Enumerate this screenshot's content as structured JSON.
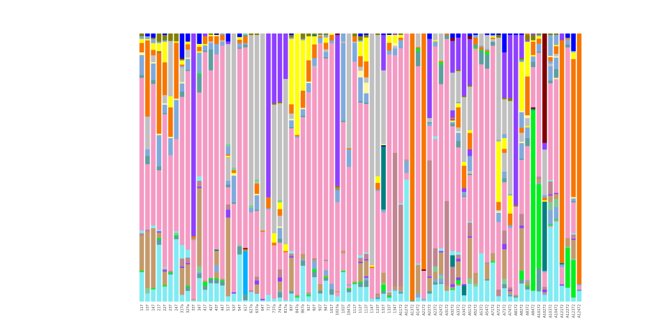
{
  "chart_data": {
    "type": "bar",
    "stacked": true,
    "normalized": true,
    "title": "",
    "xlabel": "",
    "ylabel": "",
    "ylim": [
      0,
      1
    ],
    "grid": false,
    "legend": "none",
    "stack_format": "bottom-to-top list of category:fraction",
    "category_colors": {
      "c": "#80EBF3",
      "t": "#C49A6C",
      "p": "#F49AC3",
      "g": "#C0C0C0",
      "l": "#80AADC",
      "o": "#F77600",
      "v": "#8F40FF",
      "y": "#FFFF00",
      "q": "#5F9EA0",
      "m": "#C08590",
      "b": "#0000FF",
      "k": "#008080",
      "G": "#00F020",
      "n": "#808000",
      "r": "#800000",
      "s": "#00B0FF",
      "e": "#80CC99",
      "w": "#FFF8A0"
    },
    "bars": [
      {
        "label": "117",
        "stack": "c:.11 G:.005 t:.13 m:.01 c:.01 p:.57 q:.01 l:.075 w:.01 o:.035 y:.015 l:.01 n:.01"
      },
      {
        "label": "137",
        "stack": "c:.03 e:.02 t:.205 m:.01 p:.24 q:.03 l:.025 g:.12 o:.28 y:.005 l:.01 b:.01"
      },
      {
        "label": "147",
        "stack": "c:.045 G:.005 t:.22 c:.01 p:.52 q:.015 l:.06 w:.005 g:.025 o:.02 y:.025 l:.015 n:.005 b:.015"
      },
      {
        "label": "217",
        "stack": "c:.21 q:.02 G:.005 t:.02 v:.005 c:.005 p:.22 q:.015 l:.115 w:.005 o:.3 n:.005 y:.03 l:.005 n:.03"
      },
      {
        "label": "227",
        "stack": "c:.055 G:.005 t:.05 v:.005 m:.005 c:.005 p:.56 q:.005 l:.03 w:.005 g:.03 o:.12 y:.075 l:.005 n:.02 b:.005"
      },
      {
        "label": "237",
        "stack": "c:.11 q:.005 G:.005 m:.005 p:.47 l:.07 w:.005 o:.12 y:.045 g:.225 n:.03"
      },
      {
        "label": "247",
        "stack": "c:.24 q:.01 G:.005 e:.01 c:.005 p:.355 l:.15 w:.005 o:.215 y:.005 n:.03"
      },
      {
        "label": "317a",
        "stack": "c:.025 t:.1 v:.005 m:.03 c:.05 p:.55 q:.02 l:.03 w:.005 g:.055 l:.005 o:.005 y:.015 q:.005 r:.005 b:.09"
      },
      {
        "label": "327a",
        "stack": "c:.04 q:.015 G:.005 t:.08 v:.005 m:.02 c:.03 p:.67 q:.005 l:.04 w:.005 g:.03 o:.02 y:.01 b:.03"
      },
      {
        "label": "337",
        "stack": "c:.005 t:.005 p:.22 l:.005 o:.01 v:.76"
      },
      {
        "label": "347",
        "stack": "c:.08 q:.015 l:.005 e:.02 t:.265 v:.005 m:.02 c:.015 p:.285 q:.06 G:.005 l:.07 y:.005 o:.015 y:.01 b:.035"
      },
      {
        "label": "417",
        "stack": "c:.045 q:.015 G:.015 t:.005 p:.87 q:.005 l:.02 y:.005 o:.03 v:.01"
      },
      {
        "label": "427",
        "stack": "c:.07 q:.015 G:.005 p:.79 q:.08 l:.025 g:.005 o:.02 y:.005 n:.005"
      },
      {
        "label": "437",
        "stack": "c:.07 q:.015 G:.005 t:.025 l:.025 t:.055 k:.005 p:.75 l:.04 o:.03 y:.005 b:.005"
      },
      {
        "label": "447",
        "stack": "c:.06 q:.015 G:.005 t:.005 p:.87 l:.015 g:.005 o:.02 l:.005"
      },
      {
        "label": "517",
        "stack": "c:.02 t:.3 v:.03 m:.02 p:.065 q:.01 l:.015 g:.09 y:.005 o:.005 l:.03 e:.01 g:.38 v:.01 b:.03"
      },
      {
        "label": "537",
        "stack": "c:.03 v:.005 p:.33 q:.005 l:.1 w:.005 y:.005 o:.01 e:.01 g:.5"
      },
      {
        "label": "547",
        "stack": "c:.175 q:.03 e:.005 p:.73 q:.005 l:.015 o:.013 y:.01 b:.013"
      },
      {
        "label": "617",
        "stack": "c:.005 q:.02 s:.16 o:.005 r:.005 p:.73 q:.01 l:.005 o:.025 q:.005 e:.005"
      },
      {
        "label": "627a",
        "stack": "c:.035 m:.005 p:.28 l:.015 e:.01 g:.61 n:.005"
      },
      {
        "label": "637a",
        "stack": "c:.03 m:.005 t:.03 v:.015 m:.015 p:.25 q:.005 l:.055 w:.005 o:.04 g:.005 e:.01 g:.55 n:.005"
      },
      {
        "label": "647",
        "stack": "c:.005 v:.005 p:.25 o:.005 g:.735"
      },
      {
        "label": "717",
        "stack": "c:.025 p:.315 l:.005 o:.04 v:.605"
      },
      {
        "label": "737a",
        "stack": "c:.01 p:.2 o:.01 y:.035 g:.48 n:.005 v:.26"
      },
      {
        "label": "747a",
        "stack": "c:.015 q:.02 l:.005 t:.035 v:.015 m:.03 p:.1 q:.015 l:.04 w:.005 g:.04 o:.025 y:.025 e:.01 g:.36 n:.005 v:.255"
      },
      {
        "label": "817a",
        "stack": "c:.005 p:.18 o:.005 y:.025 g:.62 v:.17"
      },
      {
        "label": "837",
        "stack": "c:.03 q:.01 t:.125 v:.005 m:.01 c:.01 p:.46 q:.005 l:.025 w:.005 g:.02 o:.035 y:.245 l:.005 n:.01 b:.005"
      },
      {
        "label": "847a",
        "stack": "c:.015 G:.005 t:.005 p:.59 l:.005 o:.005 y:.38"
      },
      {
        "label": "867a",
        "stack": "c:.135 q:.02 l:.005 t:.02 p:.515 q:.005 l:.025 w:.005 o:.065 y:.19 l:.005 n:.02"
      },
      {
        "label": "917",
        "stack": "c:.02 G:.005 l:.005 t:.005 p:.75 l:.035 w:.005 o:.08 y:.09 n:.01"
      },
      {
        "label": "927",
        "stack": "c:.09 q:.02 G:.01 l:.03 t:.005 m:.005 p:.705 g:.005 l:.03 o:.05 y:.03 k:.005 n:.005"
      },
      {
        "label": "937",
        "stack": "c:.03 q:.01 t:.025 p:.89 l:.02 o:.005 g:.005 n:.005"
      },
      {
        "label": "947",
        "stack": "c:.08 q:.01 G:.005 t:.005 l:.02 p:.035 m:.005 p:.77 q:.005 l:.02 g:.01 o:.025 y:.02 l:.01 n:.005"
      },
      {
        "label": "1017",
        "stack": "c:.025 q:.02 l:.02 p:.87 l:.01 o:.02 y:.005"
      },
      {
        "label": "1027a",
        "stack": "c:.02 p:.015 t:.005 p:.335 l:.045 q:.005 o:.005 n:.005 v:.57 r:.005"
      },
      {
        "label": "1037",
        "stack": "c:.11 G:.005 p:.065 t:.01 p:.48 q:.005 l:.29 g:.005 l:.03"
      },
      {
        "label": "1047a",
        "stack": "c:.035 q:.01 G:.005 p:.01 l:.005 p:.44 l:.065 o:.005 g:.43"
      },
      {
        "label": "1117",
        "stack": "c:.065 G:.005 t:.005 p:.82 l:.07 g:.005 o:.02 n:.01"
      },
      {
        "label": "1127",
        "stack": "c:.055 q:.015 G:.005 t:.07 v:.005 m:.015 c:.01 p:.575 q:.005 l:.09 w:.025 g:.015 o:.04 y:.055 l:.005 n:.015 b:.01"
      },
      {
        "label": "1137",
        "stack": "c:.055 q:.025 l:.01 v:.005 t:.06 v:.005 m:.02 c:.005 p:.56 q:.005 l:.035 w:.04 g:.02 o:.06 y:.09 n:.01 b:.005"
      },
      {
        "label": "1147",
        "stack": "c:.01 p:.115 o:.005 y:.005 g:.865"
      },
      {
        "label": "1237",
        "stack": "c:.01 s:.005 t:.01 m:.005 p:.385 l:.005 o:.025 y:.025 g:.53 n:.005"
      },
      {
        "label": "1327",
        "stack": "c:.03 q:.01 G:.025 e:.005 t:.04 p:.23 l:.01 k:.24 b:.005 y:.005 g:.28 v:.135 b:.005"
      },
      {
        "label": "1337",
        "stack": "c:.015 G:.005 q:.005 t:.01 c:.005 p:.905 l:.015 o:.03 y:.03 b:.005"
      },
      {
        "label": "1347",
        "stack": "c:.04 l:.005 t:.01 m:.495 p:.36 l:.025 g:.01 w:.01 y:.03 v:.005"
      },
      {
        "label": "A1172",
        "stack": "c:.03 q:.005 l:.005 t:.015 m:.305 c:.005 p:.575 l:.03 o:.01 y:.01 n:.005"
      },
      {
        "label": "A1272",
        "stack": "c:.455 p:.025 l:.045 t:.005 p:.47"
      },
      {
        "label": "A1372",
        "stack": "q:.005 o:.995"
      },
      {
        "label": "A1472",
        "stack": "c:.015 l:.015 t:.105 c:.005 p:.725 q:.055 G:.01 o:.005 g:.05"
      },
      {
        "label": "A2172",
        "stack": "c:.005 l:.005 p:.105 r:.005 o:.88"
      },
      {
        "label": "A2272",
        "stack": "c:.03 q:.01 t:.05 v:.005 m:.44 p:.13 l:.01 q:.005 g:.015 v:.3 b:.02"
      },
      {
        "label": "A2372",
        "stack": "c:.065 q:.01 l:.01 t:.03 e:.02 m:.07 p:.42 c:.01 p:.345 l:.02 y:.005 g:.025"
      },
      {
        "label": "A2472",
        "stack": "c:.065 q:.005 l:.015 e:.01 l:.005 t:.08 v:.005 c:.01 p:.6 q:.07 G:.01 o:.005 g:.1"
      },
      {
        "label": "A3172",
        "stack": "c:.04 t:.02 m:.315 p:.605 q:.015 o:.005"
      },
      {
        "label": "A3272",
        "stack": "c:.04 G:.005 t:.005 v:.01 m:.06 k:.04 c:.015 p:.43 q:.01 l:.005 y:.005 v:.005 o:.005 v:.025 g:.13 v:.11 r:.01 b:.015"
      },
      {
        "label": "A3372",
        "stack": "c:.06 t:.005 G:.015 v:.01 t:.06 v:.01 m:.015 c:.01 p:.39 q:.025 l:.03 w:.005 g:.015 o:.075 y:.015 l:.005 g:.115 n:.005 v:.12 b:.015"
      },
      {
        "label": "A3472",
        "stack": "c:.025 k:.04 v:.005 p:.35 q:.005 l:.015 v:.015 o:.09 y:.015 g:.26 n:.005 v:.25"
      },
      {
        "label": "A5172",
        "stack": "c:.065 e:.02 t:.15 v:.005 m:.05 c:.005 p:.17 q:.005 g:.01 l:.055 v:.025 o:.06 y:.01 g:.16 n:.005 v:.17 r:.01 b:.01"
      },
      {
        "label": "A5272",
        "stack": "c:.055 e:.01 t:.04 p:.82 G:.005 q:.01 o:.025 l:.01 b:.005"
      },
      {
        "label": "A5372",
        "stack": "c:.18 p:.015 p:.69 q:.05 G:.005 o:.01 l:.005 g:.045"
      },
      {
        "label": "A5472",
        "stack": "c:.075 q:.005 t:.055 m:.005 p:.69 q:.05 G:.01 o:.005 l:.005 g:.05 b:.005"
      },
      {
        "label": "A7172",
        "stack": "c:.145 G:.005 t:.03 p:.77 q:.015 g:.01 o:.005 y:.005 l:.005 b:.005"
      },
      {
        "label": "A7272",
        "stack": "c:.02 m:.025 p:.25 l:.035 w:.005 g:.005 o:.03 y:.225 l:.005 g:.38 n:.01 b:.005"
      },
      {
        "label": "A7372",
        "stack": "c:.05 q:.015 e:.02 t:.11 v:.02 m:.05 p:.18 q:.015 l:.025 g:.07 o:.015 y:.04 l:.015 g:.13 n:.005 v:.17 b:.07"
      },
      {
        "label": "A7472",
        "stack": "c:.02 q:.005 l:.005 t:.01 v:.005 m:.01 p:.23 l:.01 o:.045 y:.07 l:.005 g:.36 n:.01 v:.245 b:.005"
      },
      {
        "label": "A8172",
        "stack": "c:.015 q:.005 t:.005 p:.33 n:.005 v:.635 b:.005"
      },
      {
        "label": "A8272",
        "stack": "c:.07 q:.015 G:.035 t:.165 v:.01 m:.045 p:.21 q:.005 l:.06 w:.005 g:.035 o:.02 l:.06 w:.005 y:.19 l:.005 q:.005 n:.005 v:.09 b:.005"
      },
      {
        "label": "A8372",
        "stack": "c:.045 q:.01 G:.005 t:.015 l:.005 p:.5 q:.03 l:.04 y:.005 g:.03 w:.01 o:.145 y:.13 v:.005 n:.02 o:.005"
      },
      {
        "label": "A8472",
        "stack": "c:.04 G:.675 k:.005 r:.005 p:.15 q:.02 l:.02 y:.005 o:.05 y:.005 n:.02 v:.005"
      },
      {
        "label": "A10172",
        "stack": "c:.04 q:.09 G:.33 l:.005 t:.015 m:.01 p:.485 q:.005 l:.03 o:.02 y:.01 l:.005 n:.005"
      },
      {
        "label": "A10272",
        "stack": "c:.025 l:.005 t:.005 v:.01 m:.01 p:.055 l:.005 k:.26 y:.005 o:.01 l:.01 g:.17 v:.025 r:.41"
      },
      {
        "label": "A10372",
        "stack": "c:.285 p:.005 G:.005 l:.055 e:.03 t:.025 v:.005 m:.05 c:.005 p:.37 q:.01 l:.055 g:.01 l:.01 o:.015 w:.005 l:.08 n:.005"
      },
      {
        "label": "A10472",
        "stack": "c:.315 p:.005 G:.005 l:.05 e:.03 t:.02 v:.005 p:.45 w:.005 q:.035 l:.045 w:.005 g:.01 o:.03 y:.005 l:.04 n:.005"
      },
      {
        "label": "A12172",
        "stack": "c:.06 v:.005 p:.065 l:.01 k:.005 o:.84 v:.025"
      },
      {
        "label": "A12272",
        "stack": "c:.05 G:.145 e:.005 t:.03 p:.69 q:.01 l:.02 o:.005 b:.015"
      },
      {
        "label": "A12372",
        "stack": "c:.015 G:.14 e:.005 t:.07 v:.005 m:.015 c:.005 p:.115 q:.005 l:.01 w:.005 o:.515 y:.025 l:.005 b:.065"
      },
      {
        "label": "A12472",
        "stack": "c:.04 q:.005 p:.015 l:.005 o:.935"
      }
    ]
  }
}
